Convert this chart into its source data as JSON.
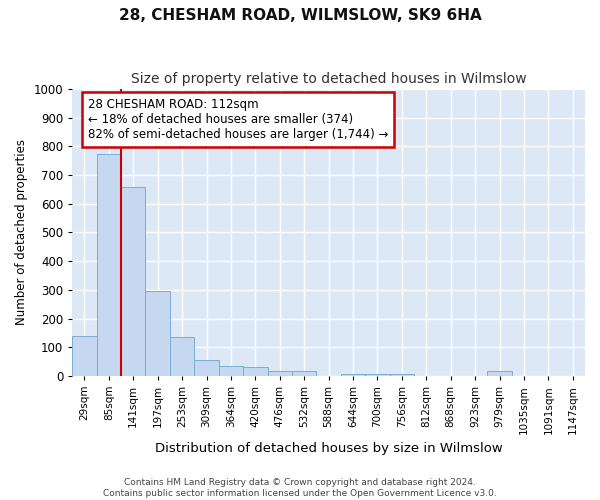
{
  "title1": "28, CHESHAM ROAD, WILMSLOW, SK9 6HA",
  "title2": "Size of property relative to detached houses in Wilmslow",
  "xlabel": "Distribution of detached houses by size in Wilmslow",
  "ylabel": "Number of detached properties",
  "footer1": "Contains HM Land Registry data © Crown copyright and database right 2024.",
  "footer2": "Contains public sector information licensed under the Open Government Licence v3.0.",
  "bins": [
    "29sqm",
    "85sqm",
    "141sqm",
    "197sqm",
    "253sqm",
    "309sqm",
    "364sqm",
    "420sqm",
    "476sqm",
    "532sqm",
    "588sqm",
    "644sqm",
    "700sqm",
    "756sqm",
    "812sqm",
    "868sqm",
    "923sqm",
    "979sqm",
    "1035sqm",
    "1091sqm",
    "1147sqm"
  ],
  "values": [
    140,
    775,
    660,
    295,
    135,
    57,
    33,
    30,
    17,
    17,
    0,
    8,
    7,
    5,
    0,
    0,
    0,
    17,
    0,
    0,
    0
  ],
  "bar_color": "#c5d8ef",
  "bar_edge_color": "#7aadd4",
  "annotation_text_line1": "28 CHESHAM ROAD: 112sqm",
  "annotation_text_line2": "← 18% of detached houses are smaller (374)",
  "annotation_text_line3": "82% of semi-detached houses are larger (1,744) →",
  "annotation_box_color": "#ffffff",
  "annotation_box_edge": "#cc0000",
  "vline_color": "#cc0000",
  "ylim": [
    0,
    1000
  ],
  "yticks": [
    0,
    100,
    200,
    300,
    400,
    500,
    600,
    700,
    800,
    900,
    1000
  ],
  "plot_bg_color": "#dce8f5",
  "fig_bg_color": "#ffffff",
  "grid_color": "#ffffff",
  "title1_fontsize": 11,
  "title2_fontsize": 10,
  "xlabel_fontsize": 9.5,
  "ylabel_fontsize": 8.5,
  "tick_fontsize": 7.5,
  "annotation_fontsize": 8.5,
  "footer_fontsize": 6.5
}
